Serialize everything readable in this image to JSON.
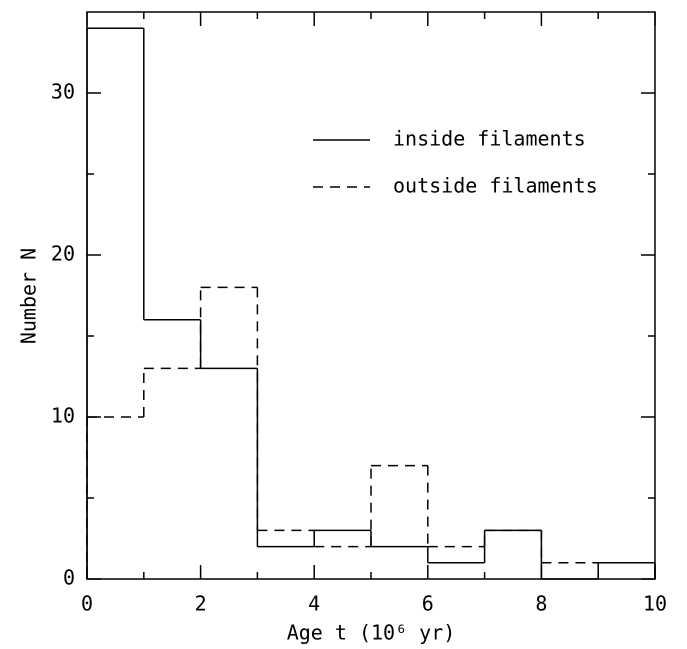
{
  "chart_data": {
    "type": "step-histogram",
    "xlabel": "Age t (10⁶ yr)",
    "ylabel": "Number N",
    "bins": [
      0,
      1,
      2,
      3,
      4,
      5,
      6,
      7,
      8,
      9,
      10
    ],
    "series": [
      {
        "name": "inside filaments",
        "color": "#000000",
        "line_style": "solid",
        "values": [
          34,
          16,
          13,
          2,
          3,
          2,
          1,
          3,
          0,
          1
        ]
      },
      {
        "name": "outside filaments",
        "color": "#000000",
        "line_style": "dashed",
        "values": [
          10,
          13,
          18,
          3,
          2,
          7,
          2,
          3,
          1,
          1
        ]
      }
    ],
    "xlim": [
      0,
      10
    ],
    "xticks": [
      0,
      2,
      4,
      6,
      8,
      10
    ],
    "x_minor_ticks": [
      1,
      3,
      5,
      7,
      9
    ],
    "ylim": [
      0,
      35
    ],
    "yticks": [
      0,
      10,
      20,
      30
    ],
    "y_minor_ticks": [
      5,
      15,
      25
    ],
    "legend": "upper right"
  }
}
